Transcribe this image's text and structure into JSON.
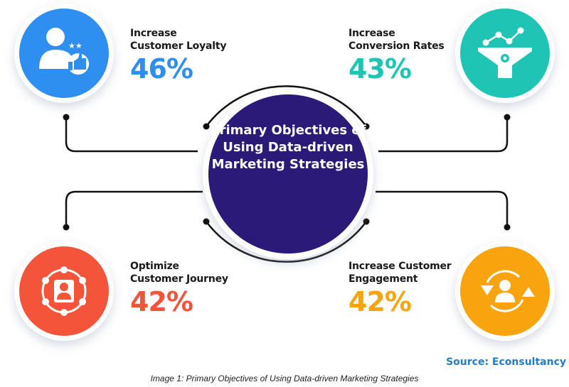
{
  "center": {
    "title": "Primary Objectives of Using Data-driven Marketing Strategies"
  },
  "items": [
    {
      "label_line1": "Increase",
      "label_line2": "Customer Loyalty",
      "value": "46%",
      "color": "#2f8ff0",
      "icon": "customer-loyalty-icon"
    },
    {
      "label_line1": "Increase",
      "label_line2": "Conversion Rates",
      "value": "43%",
      "color": "#1fc4b4",
      "icon": "conversion-funnel-icon"
    },
    {
      "label_line1": "Optimize",
      "label_line2": "Customer Journey",
      "value": "42%",
      "color": "#f4553a",
      "icon": "customer-journey-icon"
    },
    {
      "label_line1": "Increase Customer",
      "label_line2": "Engagement",
      "value": "42%",
      "color": "#f9a30f",
      "icon": "customer-engagement-icon"
    }
  ],
  "center_color": "#2b1a78",
  "source": "Source: Econsultancy",
  "caption": "Image 1: Primary Objectives of Using Data-driven Marketing Strategies"
}
